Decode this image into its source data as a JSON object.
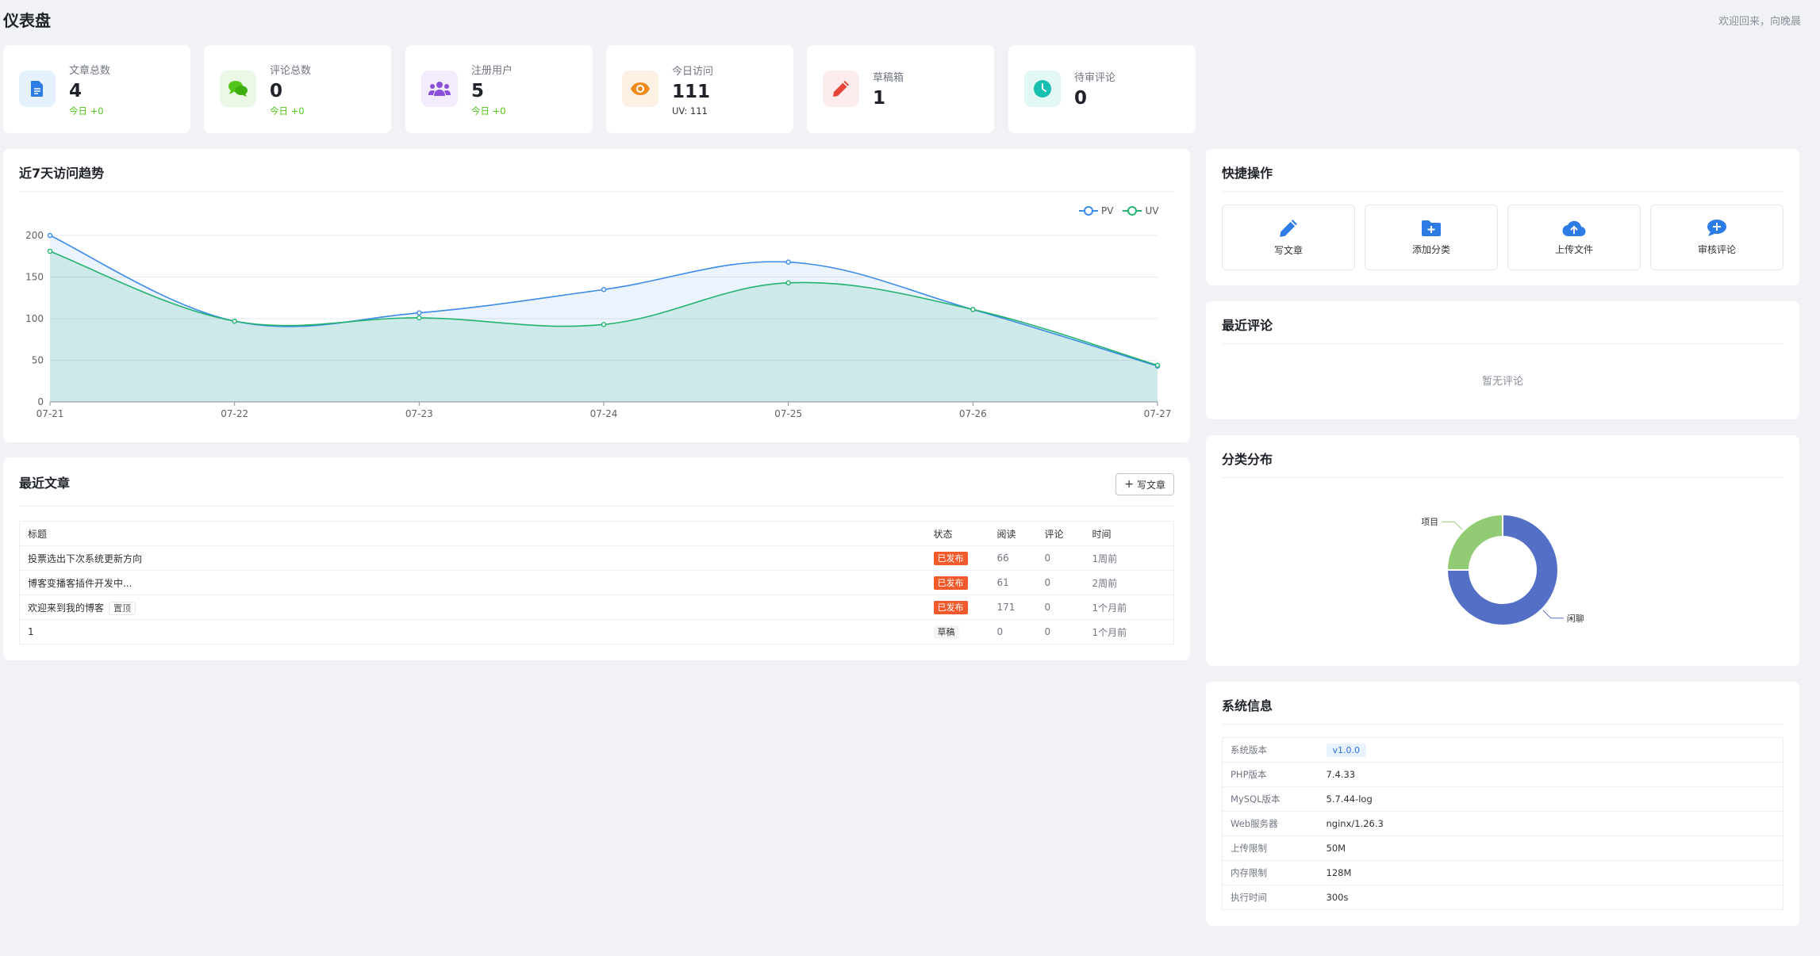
{
  "header": {
    "title": "仪表盘",
    "welcome": "欢迎回来，向晚晨"
  },
  "stats": [
    {
      "label": "文章总数",
      "value": "4",
      "sub": "今日 +0",
      "icon": "document-icon",
      "color": "#2d7be5",
      "bg": "#e6f1fe"
    },
    {
      "label": "评论总数",
      "value": "0",
      "sub": "今日 +0",
      "icon": "chat-bubbles-icon",
      "color": "#52c41a",
      "bg": "#ecf8e6"
    },
    {
      "label": "注册用户",
      "value": "5",
      "sub": "今日 +0",
      "icon": "users-icon",
      "color": "#8a4fd8",
      "bg": "#f3ecfc"
    },
    {
      "label": "今日访问",
      "value": "111",
      "sub": "UV: 111",
      "icon": "eye-icon",
      "color": "#f08a1c",
      "bg": "#fdf1e3"
    },
    {
      "label": "草稿箱",
      "value": "1",
      "sub": "",
      "icon": "pencil-icon",
      "color": "#e8443a",
      "bg": "#fdecec"
    },
    {
      "label": "待审评论",
      "value": "0",
      "sub": "",
      "icon": "clock-icon",
      "color": "#18bfae",
      "bg": "#e3f8f5"
    }
  ],
  "trend": {
    "title": "近7天访问趋势"
  },
  "chart_data": {
    "type": "line",
    "categories": [
      "07-21",
      "07-22",
      "07-23",
      "07-24",
      "07-25",
      "07-26",
      "07-27"
    ],
    "series": [
      {
        "name": "PV",
        "values": [
          200,
          97,
          107,
          135,
          168,
          111,
          43
        ],
        "color": "#3b8be8"
      },
      {
        "name": "UV",
        "values": [
          181,
          97,
          101,
          93,
          143,
          111,
          44
        ],
        "color": "#22b36e"
      }
    ],
    "yticks": [
      0,
      50,
      100,
      150,
      200
    ],
    "ylim": [
      0,
      200
    ],
    "legend": "top-right",
    "grid": true
  },
  "articles": {
    "title": "最近文章",
    "write_label": "写文章",
    "headers": {
      "title": "标题",
      "status": "状态",
      "reads": "阅读",
      "comments": "评论",
      "time": "时间"
    },
    "rows": [
      {
        "title": "投票选出下次系统更新方向",
        "status": "已发布",
        "reads": "66",
        "comments": "0",
        "time": "1周前"
      },
      {
        "title": "博客变播客插件开发中...",
        "status": "已发布",
        "reads": "61",
        "comments": "0",
        "time": "2周前"
      },
      {
        "title": "欢迎来到我的博客",
        "top": "置顶",
        "status": "已发布",
        "reads": "171",
        "comments": "0",
        "time": "1个月前"
      },
      {
        "title": "1",
        "status": "草稿",
        "reads": "0",
        "comments": "0",
        "time": "1个月前"
      }
    ]
  },
  "quick": {
    "title": "快捷操作",
    "items": [
      {
        "label": "写文章",
        "icon": "pencil-icon"
      },
      {
        "label": "添加分类",
        "icon": "folder-plus-icon"
      },
      {
        "label": "上传文件",
        "icon": "cloud-upload-icon"
      },
      {
        "label": "审核评论",
        "icon": "comment-plus-icon"
      }
    ]
  },
  "comments": {
    "title": "最近评论",
    "empty": "暂无评论"
  },
  "category": {
    "title": "分类分布",
    "chart": {
      "type": "pie",
      "slices": [
        {
          "name": "闲聊",
          "value": 3,
          "color": "#5470c6"
        },
        {
          "name": "项目",
          "value": 1,
          "color": "#91cc75"
        }
      ]
    }
  },
  "system": {
    "title": "系统信息",
    "rows": [
      {
        "key": "系统版本",
        "value": "v1.0.0",
        "badge": true
      },
      {
        "key": "PHP版本",
        "value": "7.4.33"
      },
      {
        "key": "MySQL版本",
        "value": "5.7.44-log"
      },
      {
        "key": "Web服务器",
        "value": "nginx/1.26.3"
      },
      {
        "key": "上传限制",
        "value": "50M"
      },
      {
        "key": "内存限制",
        "value": "128M"
      },
      {
        "key": "执行时间",
        "value": "300s"
      }
    ]
  }
}
